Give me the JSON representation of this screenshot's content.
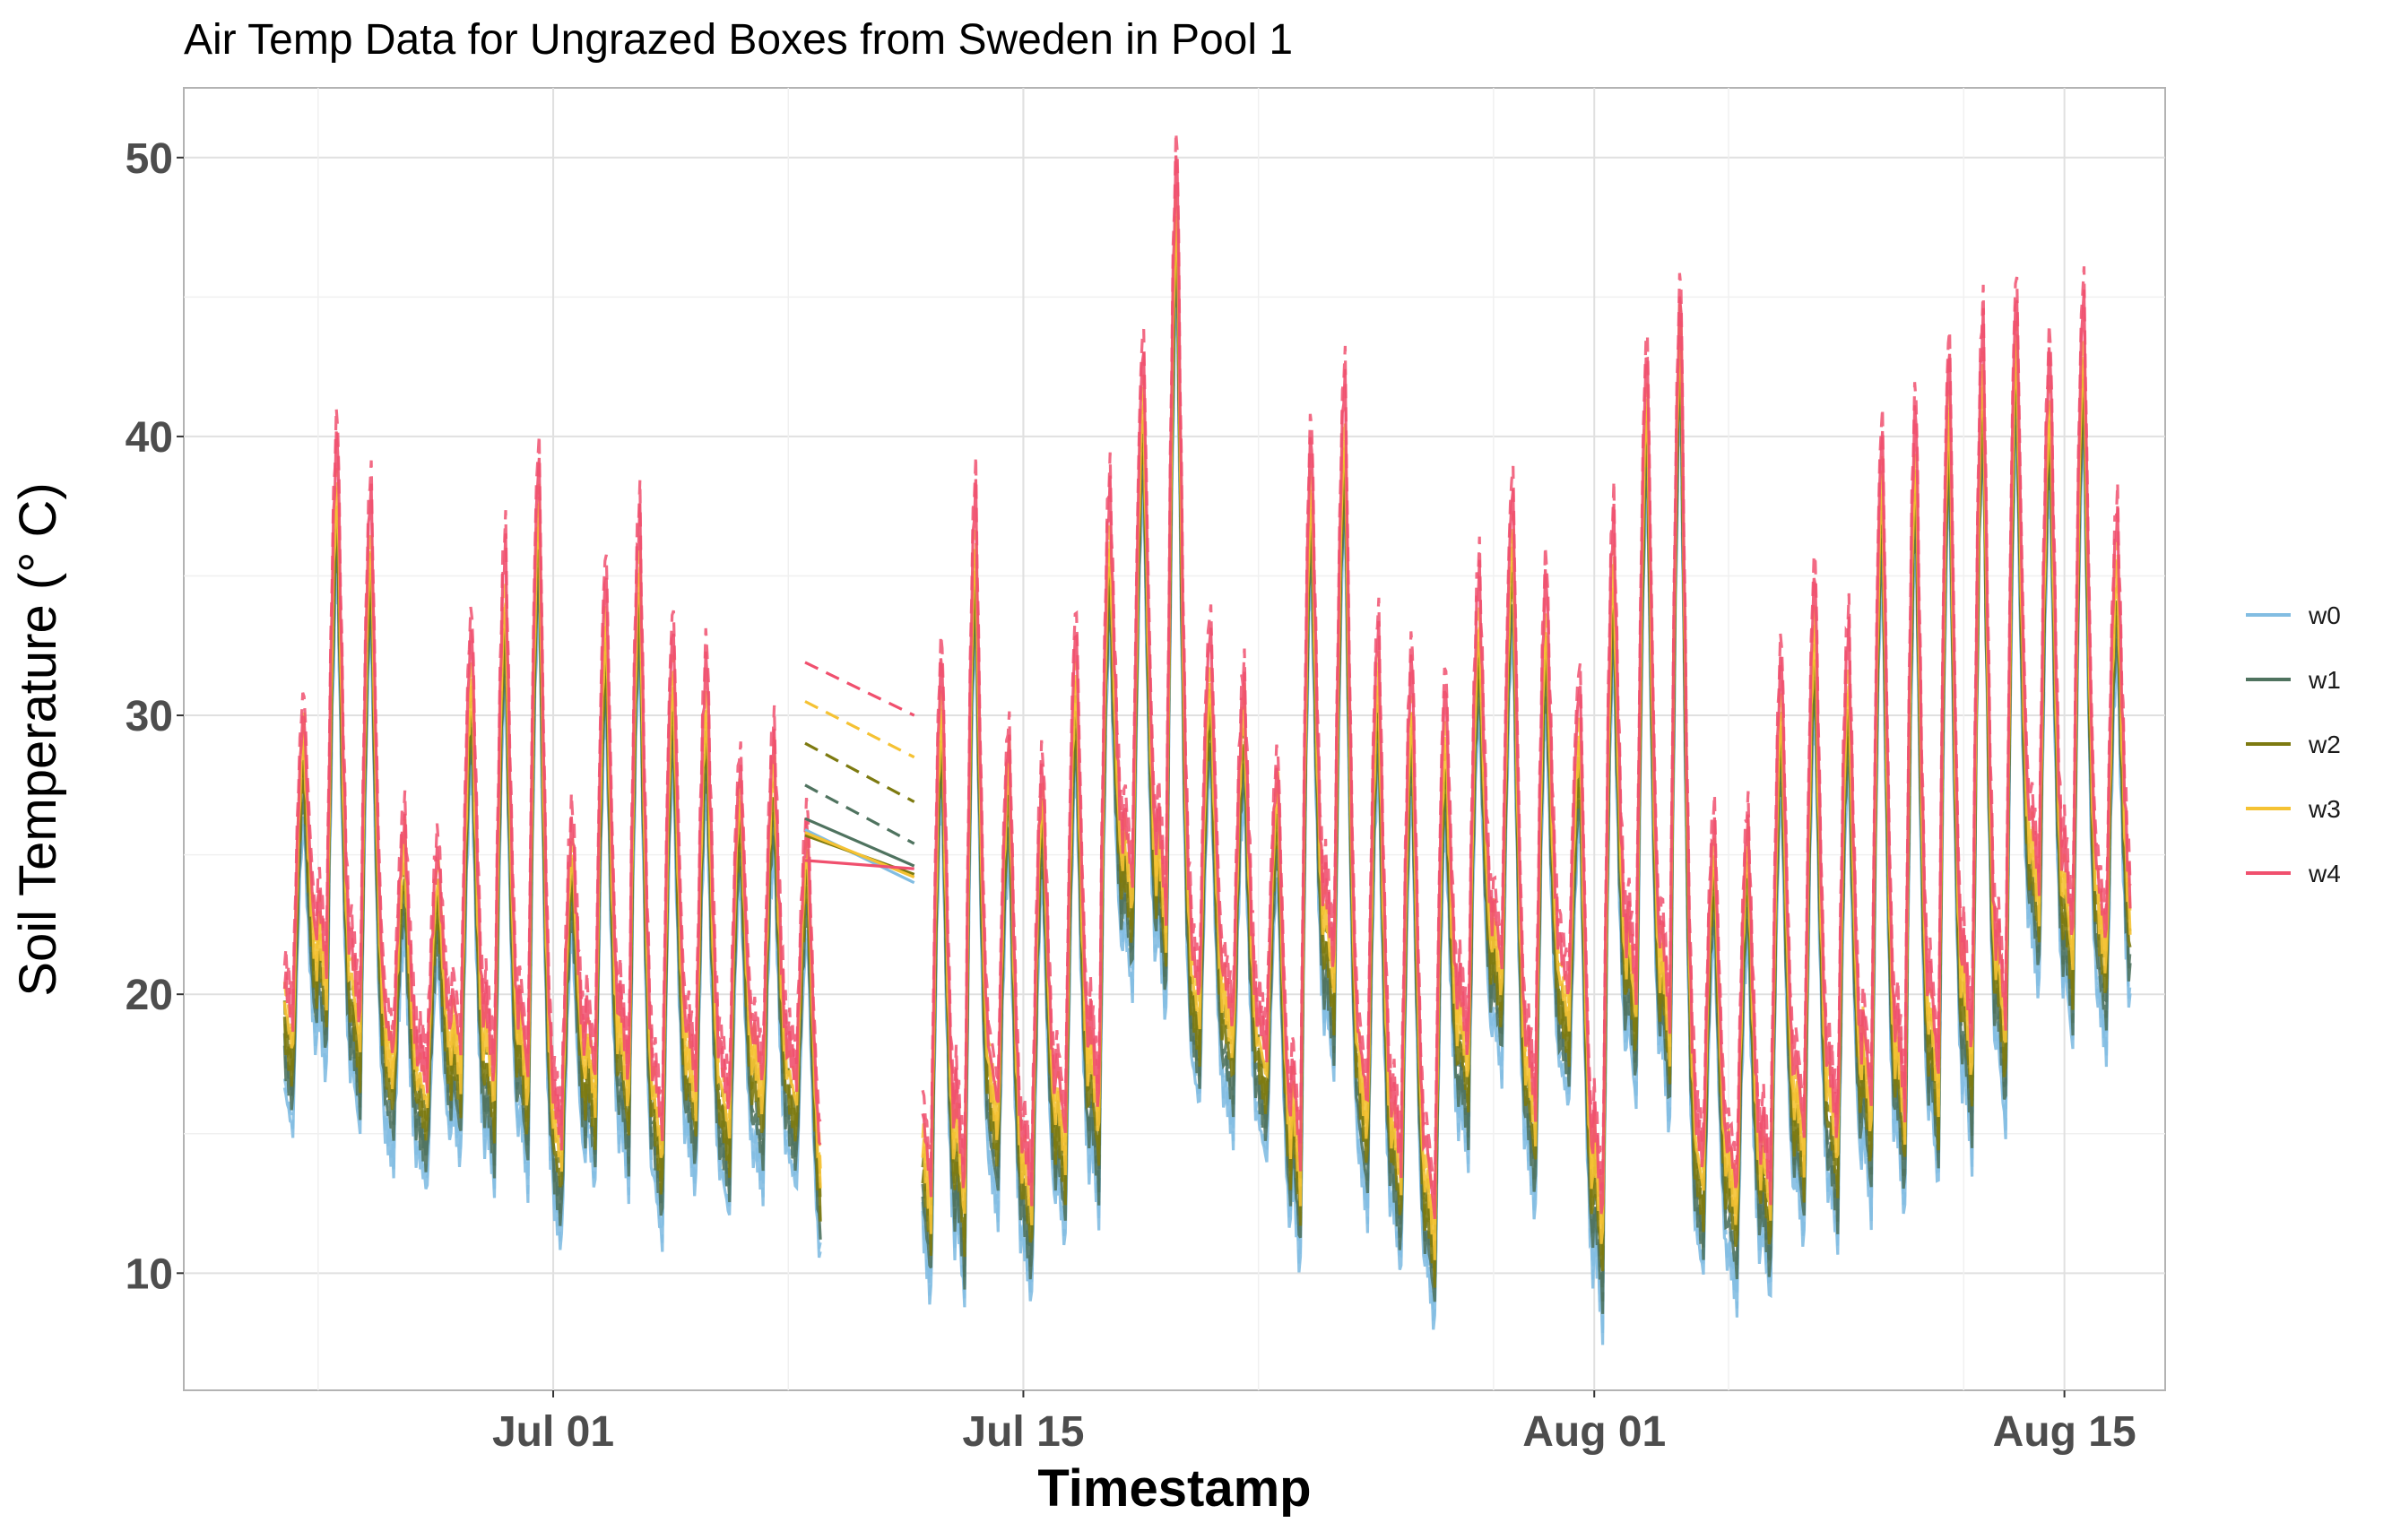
{
  "chart_data": {
    "type": "line",
    "title": "Air Temp Data for Ungrazed Boxes from Sweden in Pool 1",
    "xlabel": "Timestamp",
    "ylabel": "Soil Temperature (° C)",
    "x_type": "date",
    "xlim": [
      "2025-06-20",
      "2025-08-18"
    ],
    "ylim": [
      5.8,
      52.5
    ],
    "x_ticks": [
      {
        "date": "2025-07-01",
        "label": "Jul 01"
      },
      {
        "date": "2025-07-15",
        "label": "Jul 15"
      },
      {
        "date": "2025-08-01",
        "label": "Aug 01"
      },
      {
        "date": "2025-08-15",
        "label": "Aug 15"
      }
    ],
    "y_ticks": [
      10,
      20,
      30,
      40,
      50
    ],
    "grid": true,
    "legend_position": "right",
    "gap": {
      "start": "2025-07-08T12:00",
      "end": "2025-07-11T18:00"
    },
    "daily_data": {
      "dates": [
        "06-23",
        "06-24",
        "06-25",
        "06-26",
        "06-27",
        "06-28",
        "06-29",
        "06-30",
        "07-01",
        "07-02",
        "07-03",
        "07-04",
        "07-05",
        "07-06",
        "07-07",
        "07-08",
        "07-12",
        "07-13",
        "07-14",
        "07-15",
        "07-16",
        "07-17",
        "07-18",
        "07-19",
        "07-20",
        "07-21",
        "07-22",
        "07-23",
        "07-24",
        "07-25",
        "07-26",
        "07-27",
        "07-28",
        "07-29",
        "07-30",
        "07-31",
        "08-01",
        "08-02",
        "08-03",
        "08-04",
        "08-05",
        "08-06",
        "08-07",
        "08-08",
        "08-09",
        "08-10",
        "08-11",
        "08-12",
        "08-13",
        "08-14",
        "08-15",
        "08-16"
      ],
      "note_unit": "° C"
    },
    "series": [
      {
        "name": "w0",
        "color": "#82bde2",
        "style": "solid",
        "max": [
          26,
          35,
          33,
          22,
          21,
          28,
          31,
          34,
          22,
          30,
          32,
          28,
          27,
          24,
          25,
          22,
          27,
          33,
          25,
          24,
          28,
          33,
          38,
          45,
          28,
          27,
          24,
          35,
          37,
          28,
          27,
          26,
          30,
          33,
          30,
          26,
          32,
          38,
          41,
          22,
          22,
          27,
          30,
          28,
          35,
          36,
          38,
          40,
          40,
          38,
          40,
          32
        ],
        "min": [
          15,
          17,
          15,
          14,
          13,
          14,
          13,
          13,
          11,
          13,
          13,
          11,
          13,
          12,
          13,
          13,
          9,
          9,
          12,
          9,
          11,
          12,
          20,
          19,
          16,
          15,
          14,
          10,
          17,
          12,
          10,
          8,
          14,
          17,
          12,
          16,
          8,
          16,
          15,
          10,
          9,
          9,
          11,
          11,
          12,
          12,
          13,
          14,
          15,
          20,
          18,
          18
        ]
      },
      {
        "name": "w1",
        "color": "#4f735f",
        "style": "solid",
        "max": [
          27,
          36,
          34,
          23,
          22,
          29,
          32,
          35,
          23,
          31,
          33,
          29,
          28,
          25,
          26,
          23,
          28,
          34,
          26,
          25,
          29,
          34,
          39,
          46,
          29,
          28,
          25,
          36,
          38,
          29,
          28,
          27,
          31,
          34,
          31,
          27,
          33,
          39,
          42,
          23,
          23,
          28,
          31,
          29,
          36,
          37,
          39,
          40,
          41,
          39,
          41,
          33
        ],
        "min": [
          16,
          18,
          16,
          15,
          14,
          15,
          14,
          14,
          12,
          14,
          14,
          12,
          14,
          13,
          14,
          14,
          10,
          10,
          13,
          10,
          12,
          13,
          21,
          20,
          17,
          16,
          15,
          11,
          18,
          13,
          11,
          9,
          15,
          18,
          13,
          17,
          9,
          17,
          16,
          11,
          10,
          10,
          12,
          12,
          13,
          13,
          14,
          15,
          16,
          21,
          19,
          19
        ]
      },
      {
        "name": "w2",
        "color": "#7d7a10",
        "style": "solid",
        "max": [
          28,
          37,
          35,
          24,
          23,
          30,
          33,
          36,
          24,
          32,
          34,
          30,
          29,
          26,
          27,
          24,
          29,
          35,
          27,
          26,
          30,
          35,
          40,
          47,
          30,
          29,
          26,
          37,
          39,
          30,
          29,
          28,
          32,
          35,
          32,
          28,
          34,
          40,
          43,
          24,
          24,
          29,
          32,
          30,
          37,
          38,
          40,
          41,
          42,
          40,
          42,
          34
        ],
        "min": [
          17,
          19,
          17,
          16,
          15,
          16,
          15,
          15,
          13,
          15,
          15,
          13,
          15,
          14,
          15,
          15,
          11,
          11,
          14,
          11,
          13,
          14,
          22,
          21,
          18,
          17,
          16,
          12,
          19,
          14,
          12,
          10,
          16,
          19,
          14,
          18,
          10,
          18,
          17,
          12,
          11,
          11,
          13,
          13,
          14,
          14,
          15,
          16,
          17,
          22,
          20,
          20
        ]
      },
      {
        "name": "w3",
        "color": "#f5c233",
        "style": "solid",
        "max": [
          29,
          38,
          36,
          25,
          24,
          31,
          34,
          37,
          25,
          33,
          35,
          31,
          30,
          27,
          28,
          25,
          30,
          36,
          28,
          27,
          31,
          36,
          41,
          48,
          31,
          30,
          27,
          38,
          40,
          31,
          30,
          29,
          33,
          36,
          33,
          29,
          35,
          41,
          44,
          25,
          25,
          30,
          33,
          31,
          38,
          39,
          41,
          42,
          43,
          41,
          43,
          35
        ],
        "min": [
          18,
          20,
          18,
          17,
          16,
          17,
          16,
          16,
          14,
          16,
          16,
          14,
          16,
          15,
          16,
          16,
          12,
          12,
          15,
          12,
          14,
          15,
          23,
          22,
          19,
          18,
          17,
          13,
          20,
          15,
          13,
          11,
          17,
          20,
          15,
          19,
          11,
          19,
          18,
          13,
          12,
          12,
          14,
          14,
          15,
          15,
          16,
          17,
          18,
          23,
          21,
          21
        ]
      },
      {
        "name": "w4",
        "color": "#f0506e",
        "style": "solid",
        "max": [
          30,
          40,
          38,
          26,
          25,
          33,
          36,
          39,
          26,
          35,
          37,
          33,
          32,
          28,
          29,
          26,
          32,
          38,
          29,
          28,
          33,
          38,
          43,
          50,
          33,
          31,
          28,
          40,
          42,
          33,
          32,
          31,
          35,
          38,
          35,
          31,
          37,
          43,
          45,
          26,
          26,
          32,
          35,
          33,
          40,
          41,
          43,
          44,
          45,
          43,
          45,
          37
        ],
        "min": [
          19,
          21,
          19,
          18,
          17,
          18,
          17,
          17,
          15,
          17,
          17,
          15,
          17,
          16,
          17,
          17,
          13,
          13,
          16,
          13,
          15,
          16,
          24,
          23,
          20,
          19,
          18,
          14,
          21,
          16,
          14,
          12,
          18,
          21,
          16,
          20,
          12,
          20,
          19,
          14,
          13,
          13,
          15,
          15,
          16,
          16,
          17,
          18,
          19,
          24,
          22,
          22
        ]
      }
    ],
    "gap_lines": [
      {
        "series": "w0",
        "style": "solid",
        "start": 25.9,
        "end": 24.0
      },
      {
        "series": "w1",
        "style": "solid",
        "start": 26.3,
        "end": 24.6
      },
      {
        "series": "w2",
        "style": "solid",
        "start": 25.7,
        "end": 24.3
      },
      {
        "series": "w3",
        "style": "solid",
        "start": 25.8,
        "end": 24.2
      },
      {
        "series": "w4",
        "style": "solid",
        "start": 24.8,
        "end": 24.5
      },
      {
        "series": "w1",
        "style": "dashed",
        "start": 27.5,
        "end": 25.4
      },
      {
        "series": "w2",
        "style": "dashed",
        "start": 29.0,
        "end": 26.9
      },
      {
        "series": "w3",
        "style": "dashed",
        "start": 30.5,
        "end": 28.5
      },
      {
        "series": "w4",
        "style": "dashed",
        "start": 31.9,
        "end": 30.0
      }
    ]
  }
}
